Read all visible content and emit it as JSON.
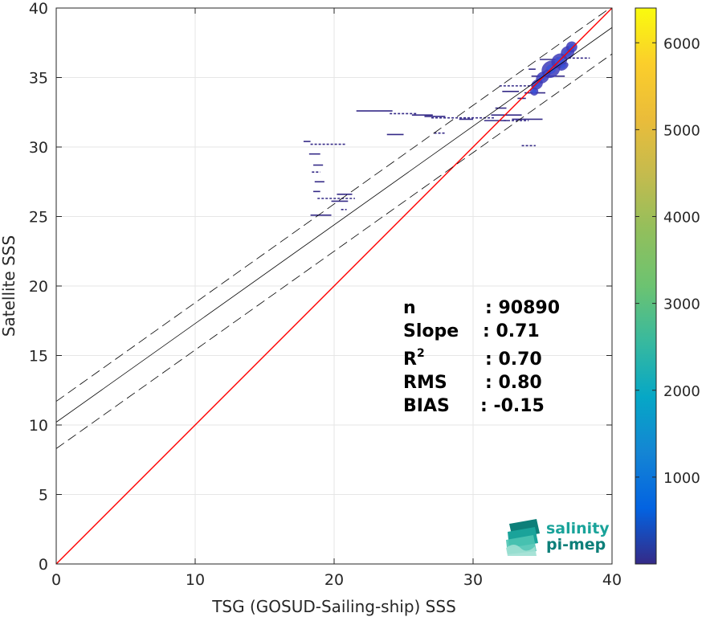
{
  "chart_data": {
    "type": "heatmap",
    "xlabel": "TSG (GOSUD-Sailing-ship) SSS",
    "ylabel": "Satellite SSS",
    "xlim": [
      0,
      40
    ],
    "ylim": [
      0,
      40
    ],
    "xticks": [
      "0",
      "10",
      "20",
      "30",
      "40"
    ],
    "yticks": [
      "0",
      "5",
      "10",
      "15",
      "20",
      "25",
      "30",
      "35",
      "40"
    ],
    "grid": true,
    "colorbar": {
      "range": [
        0,
        6400
      ],
      "ticks": [
        "1000",
        "2000",
        "3000",
        "4000",
        "5000",
        "6000"
      ],
      "colormap": "parula"
    },
    "lines": [
      {
        "role": "identity",
        "color": "#ff0000",
        "style": "solid",
        "slope": 1,
        "intercept": 0
      },
      {
        "role": "fit",
        "color": "#000000",
        "style": "solid",
        "slope": 0.71,
        "intercept": 10.2
      },
      {
        "role": "fit-upper",
        "color": "#000000",
        "style": "dashed",
        "slope": 0.71,
        "intercept": 11.7
      },
      {
        "role": "fit-lower",
        "color": "#000000",
        "style": "dashed",
        "slope": 0.71,
        "intercept": 8.3
      }
    ],
    "stats": [
      {
        "label": "n",
        "sup": "",
        "value": ": 90890"
      },
      {
        "label": "Slope",
        "sup": "",
        "value": ": 0.71"
      },
      {
        "label": "R",
        "sup": "2",
        "value": ": 0.70"
      },
      {
        "label": "RMS",
        "sup": "",
        "value": ": 0.80"
      },
      {
        "label": "BIAS",
        "sup": "",
        "value": ": -0.15"
      }
    ],
    "density_segments": [
      {
        "x0": 17.8,
        "x1": 18.3,
        "y": 30.4
      },
      {
        "x0": 18.3,
        "x1": 20.8,
        "y": 30.2
      },
      {
        "x0": 18.2,
        "x1": 19.0,
        "y": 29.5
      },
      {
        "x0": 18.5,
        "x1": 19.2,
        "y": 28.7
      },
      {
        "x0": 18.4,
        "x1": 19.0,
        "y": 28.2
      },
      {
        "x0": 18.6,
        "x1": 19.3,
        "y": 27.5
      },
      {
        "x0": 18.5,
        "x1": 19.0,
        "y": 26.8
      },
      {
        "x0": 18.8,
        "x1": 21.5,
        "y": 26.3
      },
      {
        "x0": 19.8,
        "x1": 21.0,
        "y": 26.1
      },
      {
        "x0": 20.2,
        "x1": 21.3,
        "y": 26.6
      },
      {
        "x0": 20.5,
        "x1": 20.9,
        "y": 25.5
      },
      {
        "x0": 18.3,
        "x1": 19.8,
        "y": 25.1
      },
      {
        "x0": 21.6,
        "x1": 24.2,
        "y": 32.6
      },
      {
        "x0": 24.0,
        "x1": 26.0,
        "y": 32.4
      },
      {
        "x0": 25.6,
        "x1": 27.1,
        "y": 32.3
      },
      {
        "x0": 26.5,
        "x1": 28.0,
        "y": 32.2
      },
      {
        "x0": 27.0,
        "x1": 31.5,
        "y": 32.1
      },
      {
        "x0": 29.0,
        "x1": 30.0,
        "y": 32.0
      },
      {
        "x0": 23.8,
        "x1": 25.0,
        "y": 30.9
      },
      {
        "x0": 27.2,
        "x1": 28.0,
        "y": 31.0
      },
      {
        "x0": 30.8,
        "x1": 32.5,
        "y": 31.9
      },
      {
        "x0": 31.3,
        "x1": 33.5,
        "y": 32.3
      },
      {
        "x0": 32.2,
        "x1": 34.0,
        "y": 31.9
      },
      {
        "x0": 31.6,
        "x1": 32.4,
        "y": 32.8
      },
      {
        "x0": 32.8,
        "x1": 35.0,
        "y": 32.0
      },
      {
        "x0": 31.9,
        "x1": 34.6,
        "y": 34.4
      },
      {
        "x0": 32.1,
        "x1": 33.3,
        "y": 34.0
      },
      {
        "x0": 33.2,
        "x1": 33.8,
        "y": 33.5
      },
      {
        "x0": 33.5,
        "x1": 34.5,
        "y": 30.1
      },
      {
        "x0": 34.8,
        "x1": 36.0,
        "y": 36.3
      },
      {
        "x0": 34.2,
        "x1": 36.6,
        "y": 35.1
      },
      {
        "x0": 36.0,
        "x1": 38.4,
        "y": 36.4
      },
      {
        "x0": 34.0,
        "x1": 34.5,
        "y": 35.6
      },
      {
        "x0": 33.7,
        "x1": 35.2,
        "y": 33.9
      }
    ],
    "density_core": [
      {
        "x": 35.0,
        "y": 35.0,
        "w": 1.0,
        "h": 0.8
      },
      {
        "x": 35.6,
        "y": 35.6,
        "w": 1.4,
        "h": 1.2
      },
      {
        "x": 36.2,
        "y": 36.2,
        "w": 1.2,
        "h": 1.0
      },
      {
        "x": 36.8,
        "y": 36.8,
        "w": 1.0,
        "h": 0.9
      },
      {
        "x": 37.1,
        "y": 37.2,
        "w": 0.8,
        "h": 0.8
      },
      {
        "x": 34.6,
        "y": 34.5,
        "w": 0.9,
        "h": 0.7
      },
      {
        "x": 34.4,
        "y": 34.0,
        "w": 0.6,
        "h": 0.6
      },
      {
        "x": 35.3,
        "y": 35.3,
        "w": 0.6,
        "h": 0.5
      },
      {
        "x": 36.5,
        "y": 35.8,
        "w": 0.8,
        "h": 0.5
      }
    ]
  },
  "logo": {
    "line1": "salinity",
    "line2": "pi-mep",
    "color": "#1aa39a"
  }
}
